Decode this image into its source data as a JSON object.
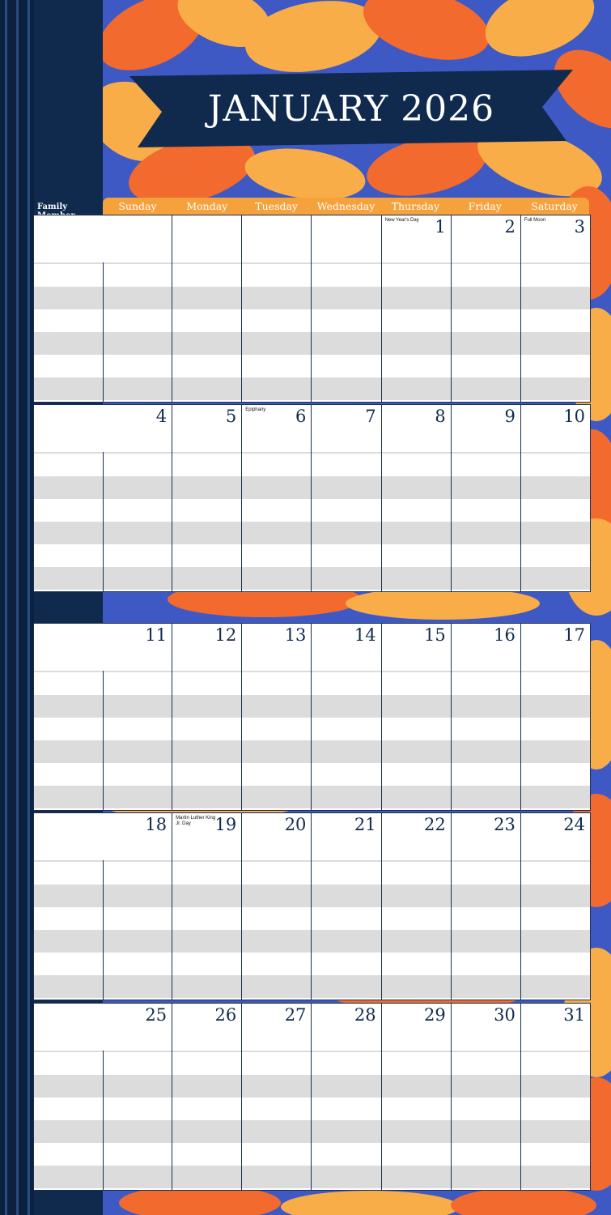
{
  "title": "JANUARY 2026",
  "family_label": "Family Member",
  "days": [
    "Sunday",
    "Monday",
    "Tuesday",
    "Wednesday",
    "Thursday",
    "Friday",
    "Saturday"
  ],
  "colors": {
    "navy": "#102a4e",
    "orange": "#f5a13c",
    "blue_bg": "#3e59c4",
    "stripe": "#dcdcdc"
  },
  "weeks": [
    {
      "days": [
        {
          "num": "",
          "note": ""
        },
        {
          "num": "",
          "note": ""
        },
        {
          "num": "",
          "note": ""
        },
        {
          "num": "",
          "note": ""
        },
        {
          "num": "1",
          "note": "New Year's Day"
        },
        {
          "num": "2",
          "note": ""
        },
        {
          "num": "3",
          "note": "Full Moon"
        }
      ]
    },
    {
      "days": [
        {
          "num": "4",
          "note": ""
        },
        {
          "num": "5",
          "note": ""
        },
        {
          "num": "6",
          "note": "Epiphany"
        },
        {
          "num": "7",
          "note": ""
        },
        {
          "num": "8",
          "note": ""
        },
        {
          "num": "9",
          "note": ""
        },
        {
          "num": "10",
          "note": ""
        }
      ]
    },
    {
      "days": [
        {
          "num": "11",
          "note": ""
        },
        {
          "num": "12",
          "note": ""
        },
        {
          "num": "13",
          "note": ""
        },
        {
          "num": "14",
          "note": ""
        },
        {
          "num": "15",
          "note": ""
        },
        {
          "num": "16",
          "note": ""
        },
        {
          "num": "17",
          "note": ""
        }
      ]
    },
    {
      "days": [
        {
          "num": "18",
          "note": ""
        },
        {
          "num": "19",
          "note": "Martin Luther King Jr. Day"
        },
        {
          "num": "20",
          "note": ""
        },
        {
          "num": "21",
          "note": ""
        },
        {
          "num": "22",
          "note": ""
        },
        {
          "num": "23",
          "note": ""
        },
        {
          "num": "24",
          "note": ""
        }
      ]
    },
    {
      "days": [
        {
          "num": "25",
          "note": ""
        },
        {
          "num": "26",
          "note": ""
        },
        {
          "num": "27",
          "note": ""
        },
        {
          "num": "28",
          "note": ""
        },
        {
          "num": "29",
          "note": ""
        },
        {
          "num": "30",
          "note": ""
        },
        {
          "num": "31",
          "note": ""
        }
      ]
    }
  ]
}
